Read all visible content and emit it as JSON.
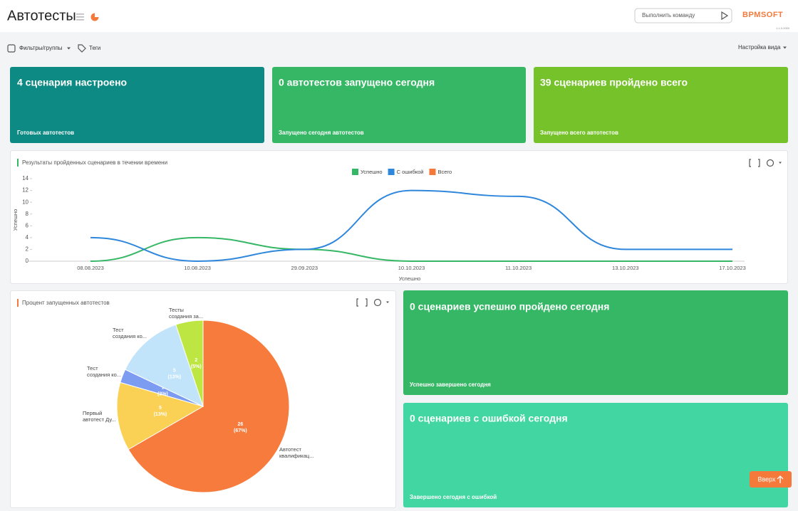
{
  "header": {
    "title": "Автотесты",
    "command_placeholder": "Выполнить команду",
    "logo": "BPMSOFT",
    "version": "1.1.0.2000"
  },
  "toolbar": {
    "filters": "Фильтры/группы",
    "tags": "Теги",
    "view_settings": "Настройка вида"
  },
  "cards": [
    {
      "title": "4 сценария настроено",
      "subtitle": "Готовых автотестов"
    },
    {
      "title": "0 автотестов запущено сегодня",
      "subtitle": "Запущено сегодня автотестов"
    },
    {
      "title": "39 сценариев пройдено всего",
      "subtitle": "Запущено всего автотестов"
    },
    {
      "title": "0 сценариев успешно пройдено сегодня",
      "subtitle": "Успешно завершено сегодня"
    },
    {
      "title": "0 сценариев с ошибкой сегодня",
      "subtitle": "Завершено сегодня с ошибкой"
    }
  ],
  "chart_data": [
    {
      "type": "line",
      "title": "Результаты пройденных сценариев в течении времени",
      "categories": [
        "08.08.2023",
        "10.08.2023",
        "29.09.2023",
        "10.10.2023",
        "11.10.2023",
        "13.10.2023",
        "17.10.2023"
      ],
      "series": [
        {
          "name": "Успешно",
          "color": "#35b765",
          "values": [
            0,
            4,
            2,
            0,
            0,
            0,
            0
          ]
        },
        {
          "name": "С ошибкой",
          "color": "#2f87dc",
          "values": [
            4,
            0,
            2,
            12,
            11,
            2,
            2
          ]
        },
        {
          "name": "Всего",
          "color": "#f5793a",
          "values": [
            null,
            null,
            null,
            null,
            null,
            null,
            null
          ]
        }
      ],
      "ylim": [
        0,
        14
      ],
      "yticks": [
        0,
        2,
        4,
        6,
        8,
        10,
        12,
        14
      ],
      "xlabel": "Успешно",
      "ylabel": "Успешно",
      "grid": false,
      "legend": "top"
    },
    {
      "type": "pie",
      "title": "Процент запущенных автотестов",
      "categories": [
        [
          "Автотест",
          "квалификац..."
        ],
        [
          "Первый",
          "автотест Ду..."
        ],
        [
          "Тест",
          "создания ко..."
        ],
        [
          "Тест",
          "создания ко..."
        ],
        [
          "Тесты",
          "создания за..."
        ]
      ],
      "values": [
        26,
        5,
        1,
        5,
        2
      ],
      "percent_labels": [
        "(67%)",
        "(13%)",
        "(3%)",
        "(13%)",
        "(5%)"
      ],
      "colors": [
        "#f77b3c",
        "#fbd155",
        "#7b9cf0",
        "#c2e4fa",
        "#bde642"
      ]
    }
  ],
  "scroll_top": "Вверх"
}
